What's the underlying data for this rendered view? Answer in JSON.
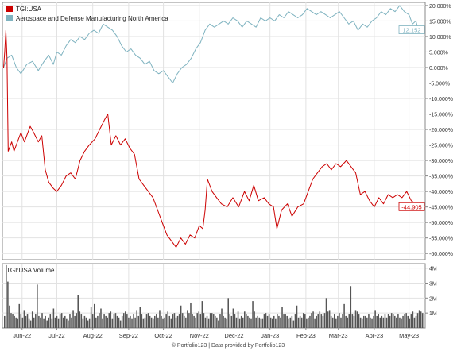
{
  "legend": [
    {
      "label": "TGI:USA",
      "color": "#cc0000"
    },
    {
      "label": "Aerospace and Defense Manufacturing North America",
      "color": "#7fb3c0"
    }
  ],
  "volume_panel": {
    "title": "TGI:USA Volume"
  },
  "footer": {
    "text": "© Portfolio123 | Data provided by Portfolio123"
  },
  "chart_data": [
    {
      "type": "line",
      "title": "",
      "ylabel": "",
      "y_tick_labels": [
        "20.000%",
        "15.000%",
        "10.000%",
        "5.000%",
        "0.000%",
        "-5.000%",
        "-10.000%",
        "-15.000%",
        "-20.000%",
        "-25.000%",
        "-30.000%",
        "-35.000%",
        "-40.000%",
        "-45.000%",
        "-50.000%",
        "-55.000%",
        "-60.000%"
      ],
      "y_ticks": [
        20,
        15,
        10,
        5,
        0,
        -5,
        -10,
        -15,
        -20,
        -25,
        -30,
        -35,
        -40,
        -45,
        -50,
        -55,
        -60
      ],
      "ylim": [
        -62,
        21
      ],
      "x_tick_labels": [
        "Jun-22",
        "Jul-22",
        "Aug-22",
        "Sep-22",
        "Oct-22",
        "Nov-22",
        "Dec-22",
        "Jan-23",
        "Feb-23",
        "Mar-23",
        "Apr-23",
        "May-23"
      ],
      "x_tick_dates": [
        "2022-06-01",
        "2022-07-01",
        "2022-08-01",
        "2022-09-01",
        "2022-10-01",
        "2022-11-01",
        "2022-12-01",
        "2023-01-01",
        "2023-02-01",
        "2023-03-01",
        "2023-04-01",
        "2023-05-01"
      ],
      "x_range": [
        "2022-05-15",
        "2023-05-15"
      ],
      "grid": true,
      "series": [
        {
          "name": "TGI:USA",
          "color": "#cc0000",
          "last_label": "-44.905",
          "points": [
            [
              "2022-05-16",
              0
            ],
            [
              "2022-05-17",
              5
            ],
            [
              "2022-05-18",
              12
            ],
            [
              "2022-05-19",
              3
            ],
            [
              "2022-05-20",
              -27
            ],
            [
              "2022-05-23",
              -24
            ],
            [
              "2022-05-25",
              -27
            ],
            [
              "2022-05-27",
              -25
            ],
            [
              "2022-05-31",
              -21
            ],
            [
              "2022-06-03",
              -24
            ],
            [
              "2022-06-08",
              -19
            ],
            [
              "2022-06-11",
              -21
            ],
            [
              "2022-06-15",
              -24
            ],
            [
              "2022-06-18",
              -22
            ],
            [
              "2022-06-21",
              -33
            ],
            [
              "2022-06-24",
              -37
            ],
            [
              "2022-06-28",
              -39
            ],
            [
              "2022-07-01",
              -40
            ],
            [
              "2022-07-05",
              -38
            ],
            [
              "2022-07-09",
              -35
            ],
            [
              "2022-07-13",
              -34
            ],
            [
              "2022-07-17",
              -36
            ],
            [
              "2022-07-21",
              -30
            ],
            [
              "2022-07-25",
              -27
            ],
            [
              "2022-07-29",
              -25
            ],
            [
              "2022-08-03",
              -23
            ],
            [
              "2022-08-07",
              -20
            ],
            [
              "2022-08-11",
              -17
            ],
            [
              "2022-08-14",
              -15
            ],
            [
              "2022-08-17",
              -25
            ],
            [
              "2022-08-21",
              -22
            ],
            [
              "2022-08-25",
              -25
            ],
            [
              "2022-08-29",
              -23
            ],
            [
              "2022-09-02",
              -26
            ],
            [
              "2022-09-06",
              -28
            ],
            [
              "2022-09-10",
              -36
            ],
            [
              "2022-09-14",
              -38
            ],
            [
              "2022-09-18",
              -40
            ],
            [
              "2022-09-22",
              -42
            ],
            [
              "2022-09-26",
              -46
            ],
            [
              "2022-09-30",
              -50
            ],
            [
              "2022-10-04",
              -54
            ],
            [
              "2022-10-08",
              -56
            ],
            [
              "2022-10-12",
              -58
            ],
            [
              "2022-10-16",
              -55
            ],
            [
              "2022-10-20",
              -57
            ],
            [
              "2022-10-24",
              -54
            ],
            [
              "2022-10-28",
              -55
            ],
            [
              "2022-11-01",
              -51
            ],
            [
              "2022-11-04",
              -52
            ],
            [
              "2022-11-06",
              -46
            ],
            [
              "2022-11-08",
              -36
            ],
            [
              "2022-11-12",
              -40
            ],
            [
              "2022-11-16",
              -42
            ],
            [
              "2022-11-20",
              -44
            ],
            [
              "2022-11-25",
              -45
            ],
            [
              "2022-11-30",
              -42
            ],
            [
              "2022-12-05",
              -45
            ],
            [
              "2022-12-10",
              -40
            ],
            [
              "2022-12-14",
              -43
            ],
            [
              "2022-12-18",
              -38
            ],
            [
              "2022-12-22",
              -43
            ],
            [
              "2022-12-27",
              -42
            ],
            [
              "2022-12-31",
              -44
            ],
            [
              "2023-01-04",
              -45
            ],
            [
              "2023-01-07",
              -52
            ],
            [
              "2023-01-11",
              -46
            ],
            [
              "2023-01-16",
              -44
            ],
            [
              "2023-01-20",
              -48
            ],
            [
              "2023-01-25",
              -45
            ],
            [
              "2023-01-30",
              -44
            ],
            [
              "2023-02-03",
              -40
            ],
            [
              "2023-02-07",
              -36
            ],
            [
              "2023-02-11",
              -34
            ],
            [
              "2023-02-15",
              -32
            ],
            [
              "2023-02-19",
              -31
            ],
            [
              "2023-02-23",
              -33
            ],
            [
              "2023-02-27",
              -31
            ],
            [
              "2023-03-03",
              -32
            ],
            [
              "2023-03-08",
              -30
            ],
            [
              "2023-03-12",
              -32
            ],
            [
              "2023-03-16",
              -34
            ],
            [
              "2023-03-20",
              -41
            ],
            [
              "2023-03-24",
              -40
            ],
            [
              "2023-03-28",
              -43
            ],
            [
              "2023-04-01",
              -45
            ],
            [
              "2023-04-05",
              -42
            ],
            [
              "2023-04-09",
              -44
            ],
            [
              "2023-04-13",
              -41
            ],
            [
              "2023-04-17",
              -42
            ],
            [
              "2023-04-21",
              -41
            ],
            [
              "2023-04-25",
              -42
            ],
            [
              "2023-04-29",
              -40
            ],
            [
              "2023-05-03",
              -43
            ],
            [
              "2023-05-07",
              -44
            ],
            [
              "2023-05-09",
              -44.905
            ]
          ]
        },
        {
          "name": "Aerospace and Defense Manufacturing North America",
          "color": "#7fb3c0",
          "last_label": "12.152",
          "points": [
            [
              "2022-05-16",
              0
            ],
            [
              "2022-05-19",
              3
            ],
            [
              "2022-05-23",
              4
            ],
            [
              "2022-05-27",
              0
            ],
            [
              "2022-05-31",
              -2
            ],
            [
              "2022-06-05",
              1
            ],
            [
              "2022-06-10",
              2
            ],
            [
              "2022-06-15",
              -1
            ],
            [
              "2022-06-20",
              2
            ],
            [
              "2022-06-24",
              4
            ],
            [
              "2022-06-28",
              1
            ],
            [
              "2022-07-01",
              5
            ],
            [
              "2022-07-05",
              4
            ],
            [
              "2022-07-09",
              7
            ],
            [
              "2022-07-13",
              9
            ],
            [
              "2022-07-17",
              8
            ],
            [
              "2022-07-21",
              10
            ],
            [
              "2022-07-25",
              9
            ],
            [
              "2022-07-29",
              11
            ],
            [
              "2022-08-02",
              12
            ],
            [
              "2022-08-06",
              11
            ],
            [
              "2022-08-10",
              14
            ],
            [
              "2022-08-14",
              13
            ],
            [
              "2022-08-18",
              12
            ],
            [
              "2022-08-22",
              10
            ],
            [
              "2022-08-26",
              7
            ],
            [
              "2022-08-30",
              5
            ],
            [
              "2022-09-03",
              6
            ],
            [
              "2022-09-07",
              4
            ],
            [
              "2022-09-11",
              3
            ],
            [
              "2022-09-15",
              1
            ],
            [
              "2022-09-19",
              2
            ],
            [
              "2022-09-23",
              -1
            ],
            [
              "2022-09-27",
              -2
            ],
            [
              "2022-10-01",
              -1
            ],
            [
              "2022-10-05",
              -3
            ],
            [
              "2022-10-09",
              -5
            ],
            [
              "2022-10-13",
              -2
            ],
            [
              "2022-10-17",
              0
            ],
            [
              "2022-10-21",
              1
            ],
            [
              "2022-10-25",
              3
            ],
            [
              "2022-10-29",
              6
            ],
            [
              "2022-11-02",
              8
            ],
            [
              "2022-11-06",
              12
            ],
            [
              "2022-11-10",
              14
            ],
            [
              "2022-11-14",
              13
            ],
            [
              "2022-11-18",
              14
            ],
            [
              "2022-11-22",
              15
            ],
            [
              "2022-11-26",
              14
            ],
            [
              "2022-11-30",
              16
            ],
            [
              "2022-12-04",
              15
            ],
            [
              "2022-12-08",
              13
            ],
            [
              "2022-12-12",
              15
            ],
            [
              "2022-12-16",
              14
            ],
            [
              "2022-12-20",
              13
            ],
            [
              "2022-12-24",
              16
            ],
            [
              "2022-12-28",
              15
            ],
            [
              "2023-01-01",
              16
            ],
            [
              "2023-01-05",
              15
            ],
            [
              "2023-01-09",
              17
            ],
            [
              "2023-01-13",
              16
            ],
            [
              "2023-01-17",
              18
            ],
            [
              "2023-01-21",
              17
            ],
            [
              "2023-01-25",
              16
            ],
            [
              "2023-01-29",
              17
            ],
            [
              "2023-02-02",
              19
            ],
            [
              "2023-02-06",
              18
            ],
            [
              "2023-02-10",
              17
            ],
            [
              "2023-02-14",
              18
            ],
            [
              "2023-02-18",
              17
            ],
            [
              "2023-02-22",
              16
            ],
            [
              "2023-02-26",
              17
            ],
            [
              "2023-03-02",
              18
            ],
            [
              "2023-03-06",
              16
            ],
            [
              "2023-03-10",
              14
            ],
            [
              "2023-03-14",
              15
            ],
            [
              "2023-03-18",
              12
            ],
            [
              "2023-03-22",
              14
            ],
            [
              "2023-03-26",
              13
            ],
            [
              "2023-03-30",
              15
            ],
            [
              "2023-04-03",
              16
            ],
            [
              "2023-04-07",
              18
            ],
            [
              "2023-04-11",
              17
            ],
            [
              "2023-04-15",
              19
            ],
            [
              "2023-04-19",
              18
            ],
            [
              "2023-04-23",
              20
            ],
            [
              "2023-04-27",
              18
            ],
            [
              "2023-05-01",
              17
            ],
            [
              "2023-05-04",
              14
            ],
            [
              "2023-05-07",
              15
            ],
            [
              "2023-05-09",
              12.152
            ]
          ]
        }
      ]
    },
    {
      "type": "bar",
      "title": "TGI:USA Volume",
      "y_tick_labels": [
        "4M",
        "3M",
        "2M",
        "1M"
      ],
      "y_ticks": [
        4,
        3,
        2,
        1
      ],
      "ylim": [
        0,
        4.3
      ],
      "unit": "M shares",
      "x_tick_labels": [
        "Jun-22",
        "Jul-22",
        "Aug-22",
        "Sep-22",
        "Oct-22",
        "Nov-22",
        "Dec-22",
        "Jan-23",
        "Feb-23",
        "Mar-23",
        "Apr-23",
        "May-23"
      ],
      "color": "#555555",
      "values": [
        0.8,
        4.2,
        3.1,
        1.5,
        1.0,
        0.9,
        0.8,
        0.7,
        0.6,
        1.6,
        0.9,
        0.7,
        1.2,
        0.8,
        0.9,
        0.6,
        0.5,
        1.1,
        0.7,
        0.9,
        2.9,
        0.8,
        0.7,
        1.0,
        0.6,
        0.8,
        0.5,
        0.7,
        0.9,
        0.6,
        1.3,
        0.7,
        0.8,
        0.6,
        0.9,
        1.0,
        0.7,
        0.8,
        0.6,
        0.5,
        0.9,
        0.7,
        1.2,
        0.8,
        1.0,
        2.2,
        1.1,
        0.9,
        0.6,
        0.8,
        0.7,
        0.5,
        0.6,
        1.4,
        0.9,
        1.6,
        0.7,
        0.8,
        1.0,
        1.3,
        0.6,
        0.9,
        0.8,
        0.7,
        1.0,
        1.1,
        0.6,
        0.9,
        1.0,
        0.8,
        0.7,
        0.5,
        0.8,
        1.0,
        1.1,
        0.9,
        0.7,
        0.8,
        0.6,
        0.9,
        0.7,
        1.2,
        0.8,
        1.4,
        0.9,
        0.6,
        0.7,
        0.9,
        1.0,
        0.8,
        0.7,
        0.6,
        0.8,
        0.9,
        0.7,
        1.2,
        0.8,
        0.6,
        0.7,
        0.9,
        1.1,
        0.8,
        0.6,
        0.9,
        1.0,
        0.7,
        0.8,
        0.9,
        1.5,
        1.0,
        0.8,
        0.7,
        1.2,
        1.0,
        1.7,
        0.9,
        0.8,
        0.7,
        1.0,
        1.1,
        0.9,
        1.8,
        1.0,
        0.7,
        0.8,
        0.6,
        1.0,
        1.0,
        0.9,
        0.8,
        0.7,
        0.5,
        0.9,
        1.3,
        0.8,
        0.7,
        0.6,
        2.0,
        0.9,
        0.8,
        1.3,
        0.9,
        0.7,
        1.1,
        0.6,
        0.8,
        0.7,
        1.1,
        0.9,
        0.8,
        0.7,
        0.6,
        1.8,
        1.1,
        0.7,
        0.8,
        0.7,
        0.6,
        0.6,
        0.9,
        1.0,
        0.8,
        0.9,
        0.7,
        0.6,
        0.8,
        0.6,
        0.9,
        0.8,
        0.7,
        1.4,
        0.9,
        0.9,
        0.8,
        0.6,
        0.7,
        0.8,
        0.5,
        0.9,
        1.5,
        0.7,
        0.8,
        0.7,
        1.0,
        0.9,
        0.6,
        0.7,
        0.8,
        1.0,
        1.1,
        0.6,
        0.8,
        0.9,
        1.1,
        0.9,
        0.8,
        1.0,
        2.0,
        1.1,
        1.2,
        0.8,
        0.7,
        0.9,
        0.6,
        0.8,
        1.0,
        0.7,
        0.9,
        1.6,
        0.8,
        0.7,
        0.9,
        2.8,
        0.9,
        0.8,
        1.2,
        1.1,
        0.9,
        0.7,
        0.6,
        0.8,
        0.8,
        0.7,
        0.9,
        0.7,
        0.6,
        0.8,
        1.2,
        0.8,
        0.9,
        0.7,
        0.8,
        0.7,
        0.9,
        0.7,
        0.9,
        0.8,
        1.0,
        0.9,
        0.8,
        0.7,
        0.9,
        0.7,
        0.6,
        0.8,
        0.9,
        1.0,
        0.8,
        0.6,
        0.9,
        1.1,
        0.7,
        0.8,
        1.0,
        1.2,
        1.1,
        1.0
      ]
    }
  ]
}
